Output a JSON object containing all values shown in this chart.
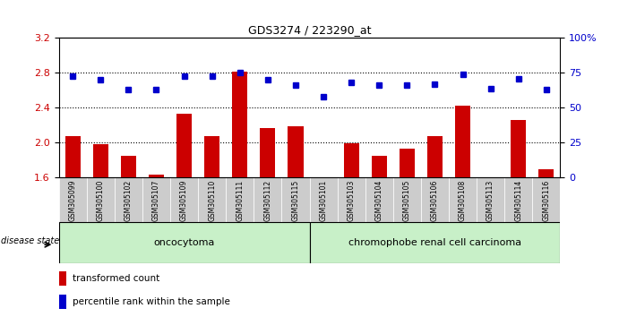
{
  "title": "GDS3274 / 223290_at",
  "samples": [
    "GSM305099",
    "GSM305100",
    "GSM305102",
    "GSM305107",
    "GSM305109",
    "GSM305110",
    "GSM305111",
    "GSM305112",
    "GSM305115",
    "GSM305101",
    "GSM305103",
    "GSM305104",
    "GSM305105",
    "GSM305106",
    "GSM305108",
    "GSM305113",
    "GSM305114",
    "GSM305116"
  ],
  "red_values": [
    2.07,
    1.98,
    1.85,
    1.63,
    2.33,
    2.07,
    2.81,
    2.17,
    2.19,
    1.6,
    1.99,
    1.85,
    1.93,
    2.07,
    2.42,
    1.6,
    2.26,
    1.7
  ],
  "blue_values": [
    73.0,
    70.0,
    63.0,
    63.0,
    73.0,
    73.0,
    75.0,
    70.0,
    66.0,
    58.0,
    68.0,
    66.0,
    66.0,
    67.0,
    74.0,
    64.0,
    71.0,
    63.0
  ],
  "ylim_left": [
    1.6,
    3.2
  ],
  "ylim_right": [
    0,
    100
  ],
  "yticks_left": [
    1.6,
    2.0,
    2.4,
    2.8,
    3.2
  ],
  "yticks_right": [
    0,
    25,
    50,
    75,
    100
  ],
  "red_color": "#cc0000",
  "blue_color": "#0000cc",
  "oncocytoma_count": 9,
  "chromophobe_count": 9,
  "group1_label": "oncocytoma",
  "group2_label": "chromophobe renal cell carcinoma",
  "disease_state_label": "disease state",
  "legend_red": "transformed count",
  "legend_blue": "percentile rank within the sample",
  "bar_bottom": 1.6,
  "group_bg_color": "#c8f0c8",
  "label_bg_color": "#cccccc",
  "hline_vals": [
    2.0,
    2.4,
    2.8
  ]
}
